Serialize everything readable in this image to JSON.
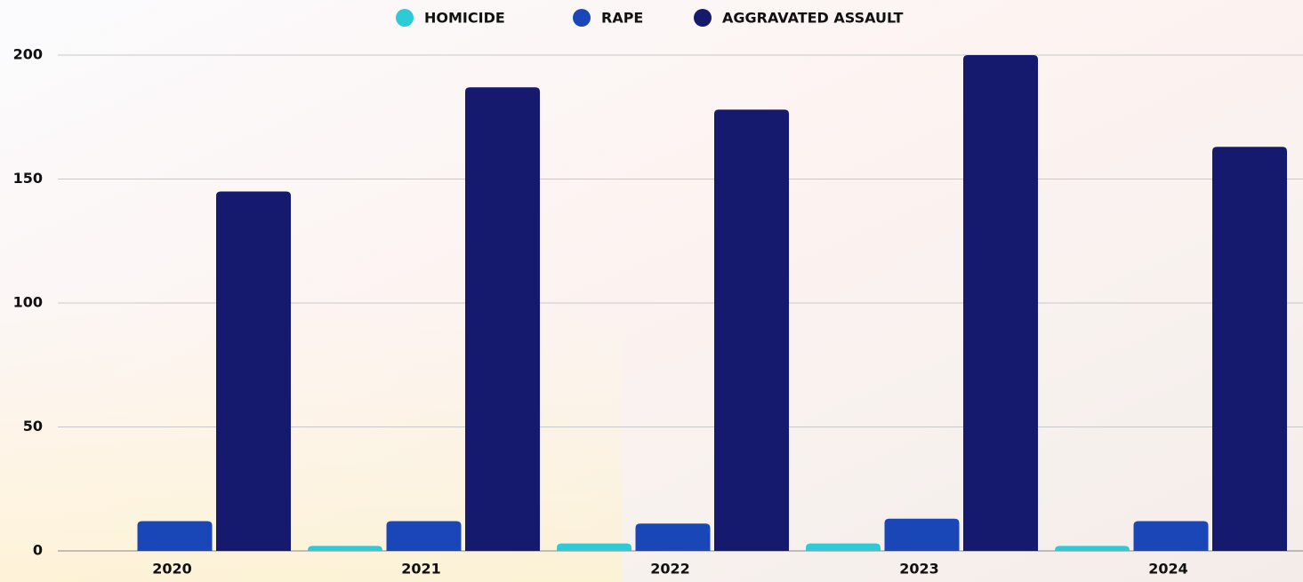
{
  "chart_data": {
    "type": "bar",
    "categories": [
      "2020",
      "2021",
      "2022",
      "2023",
      "2024"
    ],
    "series": [
      {
        "name": "HOMICIDE",
        "color": "#2ecbd6",
        "values": [
          0,
          2,
          3,
          3,
          2
        ]
      },
      {
        "name": "RAPE",
        "color": "#1a47b8",
        "values": [
          12,
          12,
          11,
          13,
          12
        ]
      },
      {
        "name": "AGGRAVATED ASSAULT",
        "color": "#161a6e",
        "values": [
          145,
          187,
          178,
          200,
          163
        ]
      }
    ],
    "ylim": [
      0,
      200
    ],
    "yticks": [
      0,
      50,
      100,
      150,
      200
    ],
    "grid": true,
    "legend": "top"
  }
}
